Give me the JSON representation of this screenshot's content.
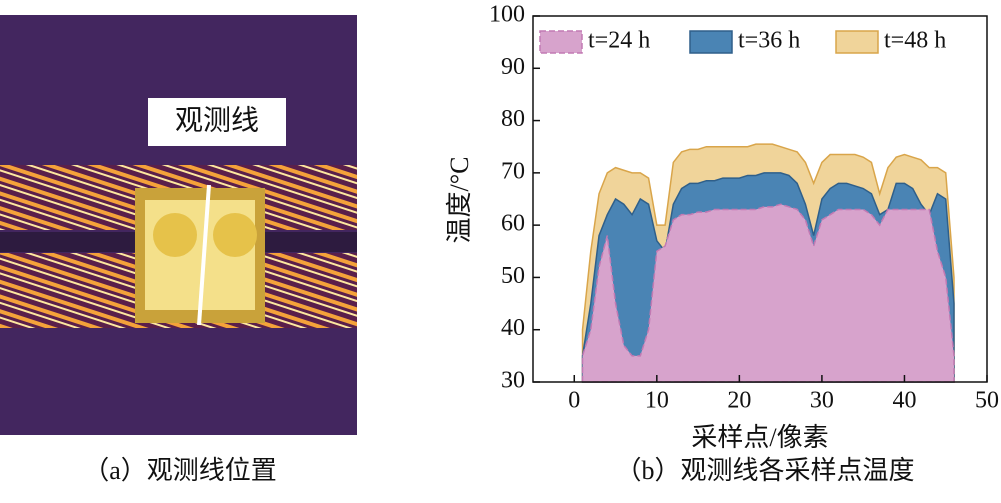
{
  "panel_a": {
    "label": "观测线",
    "caption": "（a）观测线位置"
  },
  "chart_data": {
    "type": "area",
    "caption": "（b）观测线各采样点温度",
    "xlabel": "采样点/像素",
    "ylabel": "温度/°C",
    "x": [
      1,
      2,
      3,
      4,
      5,
      6,
      7,
      8,
      9,
      10,
      11,
      12,
      13,
      14,
      15,
      16,
      17,
      18,
      19,
      20,
      21,
      22,
      23,
      24,
      25,
      26,
      27,
      28,
      29,
      30,
      31,
      32,
      33,
      34,
      35,
      36,
      37,
      38,
      39,
      40,
      41,
      42,
      43,
      44,
      45,
      46
    ],
    "series": [
      {
        "name": "t=48 h",
        "color": "#f0d49a",
        "edge": "#d9a54a",
        "values": [
          40,
          55,
          66,
          70,
          71,
          70.5,
          70,
          70,
          69,
          60,
          60,
          72,
          74,
          74.5,
          74.5,
          75,
          75,
          75,
          75,
          75,
          75,
          75.5,
          75.5,
          75.5,
          75,
          74.5,
          74,
          72,
          68,
          72,
          73.5,
          73.5,
          73.5,
          73.5,
          73,
          72,
          66,
          71,
          73,
          73.5,
          73,
          72.5,
          71,
          71,
          70,
          50
        ]
      },
      {
        "name": "t=36 h",
        "color": "#4a84b4",
        "edge": "#2f5f8a",
        "values": [
          35,
          45,
          58,
          62,
          65,
          64,
          62,
          65,
          64,
          57,
          55,
          64,
          67,
          68,
          68,
          68.5,
          68.5,
          69,
          69,
          69,
          69.5,
          69.5,
          70,
          70,
          70,
          69.5,
          68,
          64,
          58,
          65,
          67,
          68,
          68,
          67.5,
          67,
          66,
          62,
          63,
          68,
          68,
          67,
          64,
          62,
          66,
          65,
          45
        ]
      },
      {
        "name": "t=24 h",
        "color": "#d7a3cc",
        "edge": "#c27ab3",
        "values": [
          35,
          40,
          52,
          58,
          45,
          37,
          35,
          35,
          40,
          55,
          56,
          61,
          62,
          62,
          62.5,
          62.5,
          63,
          63,
          63,
          63,
          63,
          63,
          63.5,
          63.5,
          64,
          63.5,
          63,
          61,
          56,
          61,
          62,
          63,
          63,
          63,
          63,
          62,
          60,
          63,
          63,
          63,
          63,
          63,
          63,
          55,
          50,
          35
        ]
      }
    ],
    "xlim": [
      -5,
      50
    ],
    "ylim": [
      30,
      100
    ],
    "xticks": [
      0,
      10,
      20,
      30,
      40,
      50
    ],
    "yticks": [
      30,
      40,
      50,
      60,
      70,
      80,
      90,
      100
    ],
    "legend": "top"
  }
}
